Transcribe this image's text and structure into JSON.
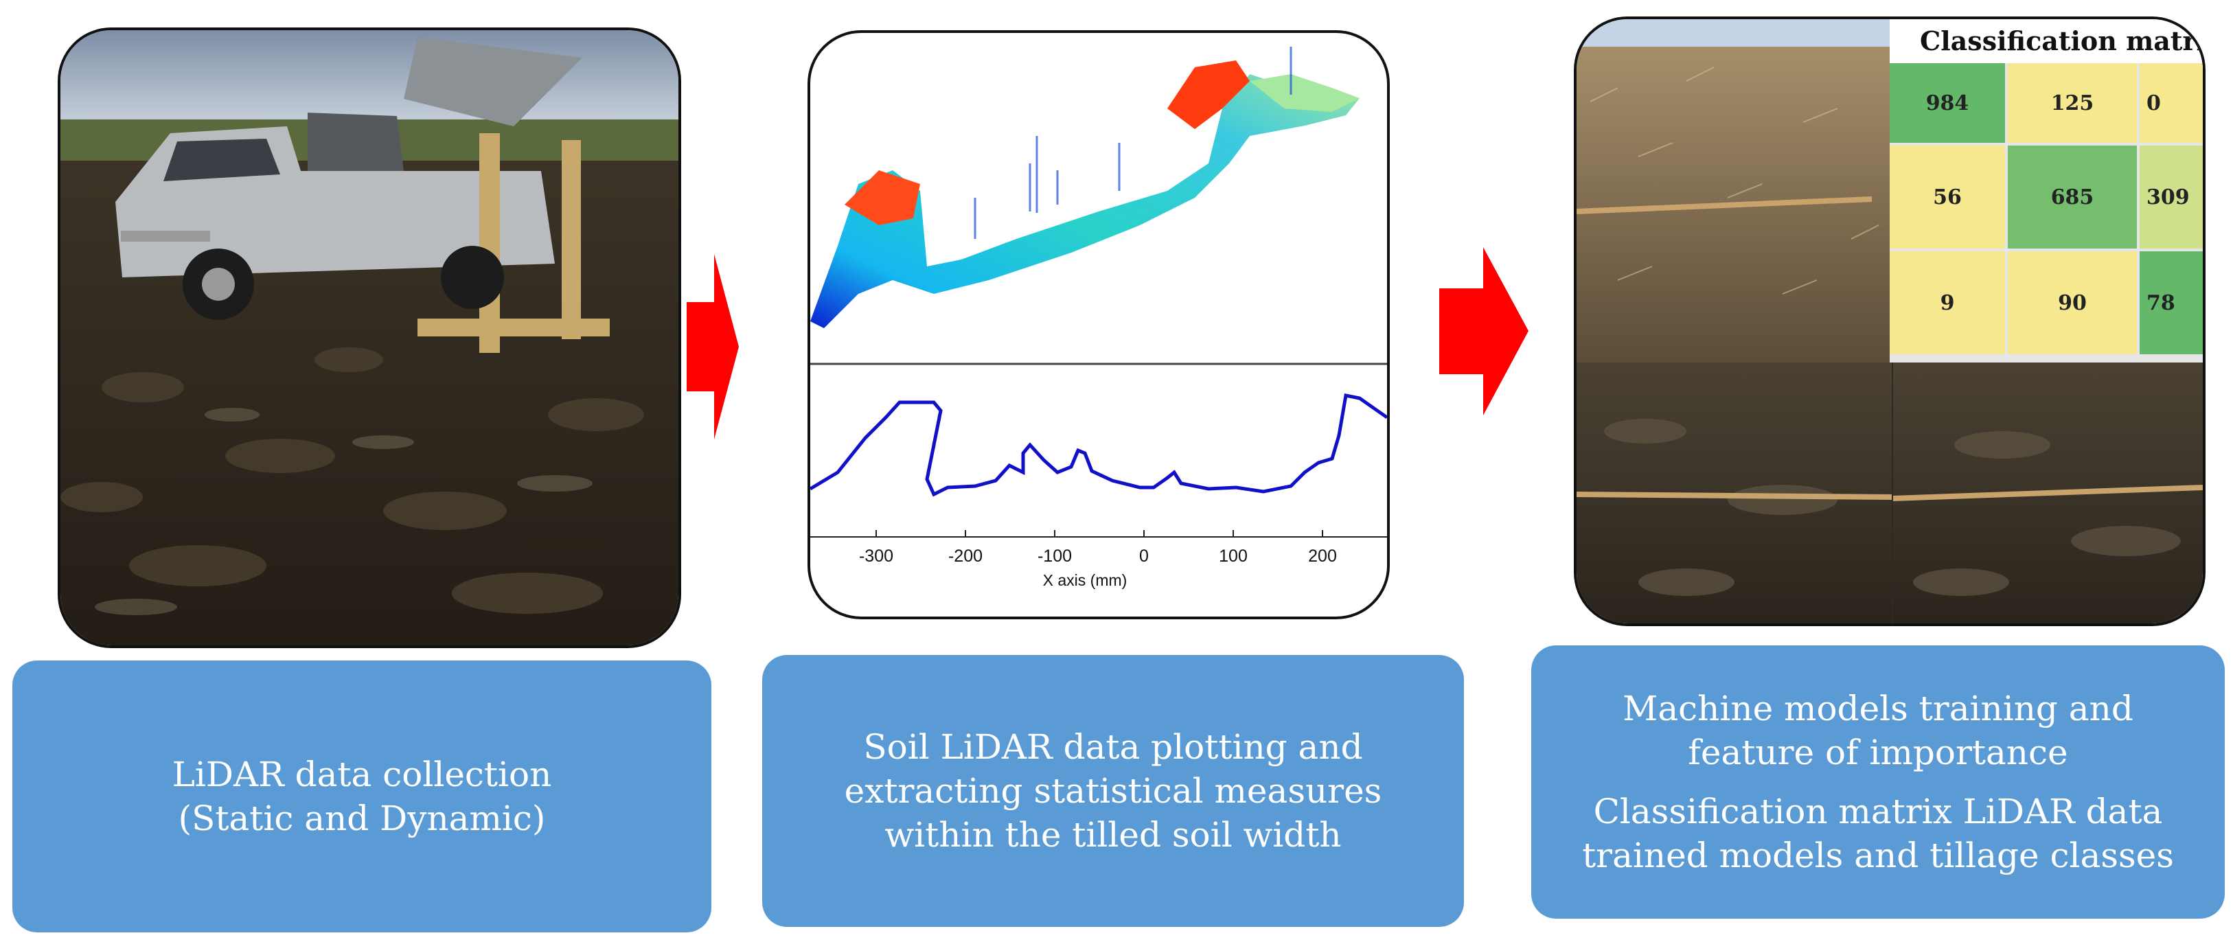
{
  "steps": [
    {
      "id": "collection",
      "label_lines": [
        "LiDAR data collection",
        "(Static and Dynamic)"
      ]
    },
    {
      "id": "plotting",
      "label_lines": [
        "Soil LiDAR data plotting and",
        "extracting statistical measures",
        "within the tilled soil width"
      ]
    },
    {
      "id": "training",
      "label_lines_a": [
        "Machine models training and",
        "feature of importance"
      ],
      "label_lines_b": [
        "Classification matrix LiDAR data",
        "trained models and tillage classes"
      ]
    }
  ],
  "profile_plot": {
    "x_ticks": [
      "-300",
      "-200",
      "-100",
      "0",
      "100",
      "200"
    ],
    "x_label": "X axis (mm)"
  },
  "classification_matrix": {
    "title": "Classification matric",
    "rows": [
      [
        "984",
        "125",
        "0"
      ],
      [
        "56",
        "685",
        "309"
      ],
      [
        "9",
        "90",
        "78"
      ]
    ],
    "cell_colors": [
      [
        "#63b86a",
        "#f5e88f",
        "#f5e88f"
      ],
      [
        "#f5e88f",
        "#74be6e",
        "#cfe08a"
      ],
      [
        "#f5e88f",
        "#f5e88f",
        "#63b86a"
      ]
    ]
  },
  "colors": {
    "label_box": "#5b9bd5",
    "arrow": "#ff0000",
    "profile_line": "#1010c8"
  }
}
